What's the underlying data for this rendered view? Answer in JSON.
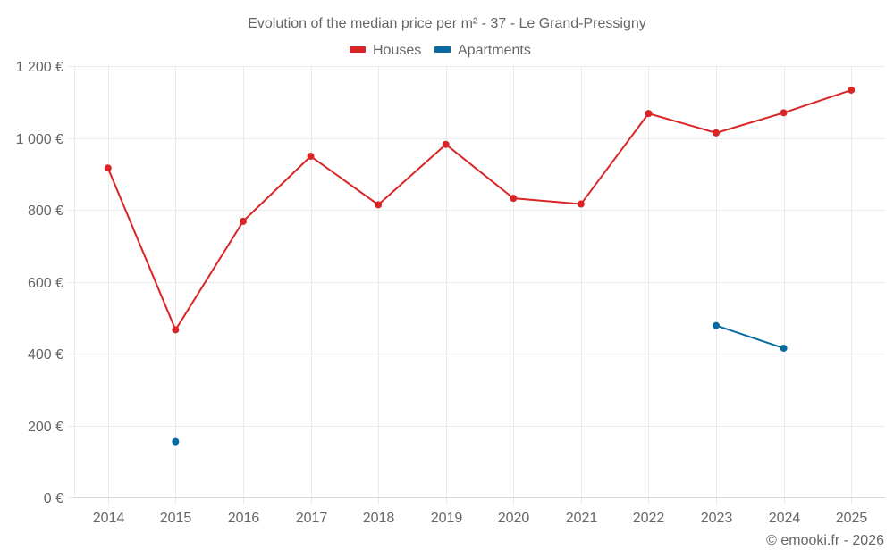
{
  "chart_data": {
    "type": "line",
    "title": "Evolution of the median price per m² - 37 - Le Grand-Pressigny",
    "xlabel": "",
    "ylabel": "",
    "categories": [
      "2014",
      "2015",
      "2016",
      "2017",
      "2018",
      "2019",
      "2020",
      "2021",
      "2022",
      "2023",
      "2024",
      "2025"
    ],
    "ylim": [
      0,
      1200
    ],
    "yticks": [
      0,
      200,
      400,
      600,
      800,
      1000,
      1200
    ],
    "ytick_labels": [
      "0 €",
      "200 €",
      "400 €",
      "600 €",
      "800 €",
      "1 000 €",
      "1 200 €"
    ],
    "grid": true,
    "legend_position": "top-center",
    "series": [
      {
        "name": "Houses",
        "color": "#d92525",
        "values": [
          916,
          466,
          768,
          949,
          814,
          982,
          832,
          816,
          1068,
          1014,
          1070,
          1133
        ]
      },
      {
        "name": "Apartments",
        "color": "#086aa0",
        "values": [
          null,
          155,
          null,
          null,
          null,
          null,
          null,
          null,
          null,
          478,
          415,
          null
        ]
      }
    ]
  },
  "footer": "© emooki.fr - 2026"
}
